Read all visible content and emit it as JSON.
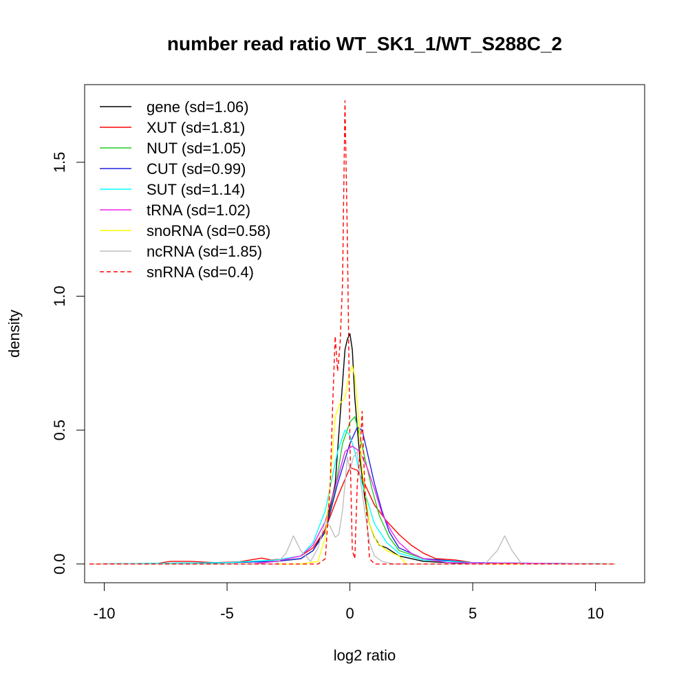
{
  "chart_data": {
    "type": "line",
    "title": "number read ratio WT_SK1_1/WT_S288C_2",
    "xlabel": "log2 ratio",
    "ylabel": "density",
    "xlim": [
      -10.8,
      12.0
    ],
    "ylim": [
      -0.07,
      1.79
    ],
    "xticks": [
      -10,
      -5,
      0,
      5,
      10
    ],
    "xtick_labels": [
      "-10",
      "-5",
      "0",
      "5",
      "10"
    ],
    "yticks": [
      0.0,
      0.5,
      1.0,
      1.5
    ],
    "ytick_labels": [
      "0.0",
      "0.5",
      "1.0",
      "1.5"
    ],
    "grid": false,
    "legend_position": "top-left",
    "series": [
      {
        "name": "gene (sd=1.06)",
        "color": "#000000",
        "dash": "solid",
        "x": [
          -10.6,
          -8,
          -5,
          -3,
          -2,
          -1.5,
          -1,
          -0.6,
          -0.4,
          -0.2,
          -0.1,
          0,
          0.1,
          0.2,
          0.4,
          0.6,
          0.8,
          1,
          1.2,
          1.5,
          2,
          3,
          5,
          10.8
        ],
        "y": [
          0,
          0,
          0.005,
          0.01,
          0.02,
          0.05,
          0.13,
          0.3,
          0.55,
          0.8,
          0.84,
          0.86,
          0.8,
          0.62,
          0.4,
          0.25,
          0.15,
          0.1,
          0.07,
          0.06,
          0.03,
          0.01,
          0,
          0
        ]
      },
      {
        "name": "XUT (sd=1.81)",
        "color": "#ff0000",
        "dash": "solid",
        "x": [
          -10.6,
          -8,
          -7.3,
          -6.5,
          -5.5,
          -4.5,
          -3.6,
          -3.2,
          -2.5,
          -2,
          -1.5,
          -1,
          -0.5,
          0,
          0.3,
          0.6,
          1,
          1.5,
          2,
          2.5,
          3,
          3.5,
          4.3,
          5,
          6,
          10.8
        ],
        "y": [
          0,
          0,
          0.01,
          0.01,
          0.005,
          0.008,
          0.022,
          0.015,
          0.02,
          0.03,
          0.06,
          0.13,
          0.25,
          0.36,
          0.35,
          0.3,
          0.22,
          0.16,
          0.11,
          0.07,
          0.04,
          0.02,
          0.015,
          0.005,
          0.003,
          0
        ]
      },
      {
        "name": "NUT (sd=1.05)",
        "color": "#22cc22",
        "dash": "solid",
        "x": [
          -10.6,
          -5,
          -3,
          -2,
          -1.5,
          -1,
          -0.6,
          -0.3,
          0,
          0.2,
          0.4,
          0.6,
          0.9,
          1.2,
          1.6,
          2,
          3,
          5,
          10.8
        ],
        "y": [
          0,
          0.005,
          0.01,
          0.02,
          0.05,
          0.12,
          0.28,
          0.45,
          0.53,
          0.55,
          0.48,
          0.4,
          0.28,
          0.18,
          0.1,
          0.05,
          0.02,
          0.005,
          0
        ]
      },
      {
        "name": "CUT (sd=0.99)",
        "color": "#2020dd",
        "dash": "solid",
        "x": [
          -10.6,
          -5,
          -3,
          -2,
          -1.5,
          -1,
          -0.5,
          0,
          0.3,
          0.5,
          0.7,
          1,
          1.3,
          1.6,
          2,
          3,
          5,
          10.8
        ],
        "y": [
          0,
          0.005,
          0.01,
          0.02,
          0.05,
          0.12,
          0.3,
          0.45,
          0.51,
          0.5,
          0.42,
          0.3,
          0.2,
          0.12,
          0.06,
          0.02,
          0.005,
          0
        ]
      },
      {
        "name": "SUT (sd=1.14)",
        "color": "#00ffff",
        "dash": "solid",
        "x": [
          -10.6,
          -5,
          -3,
          -2,
          -1.5,
          -1,
          -0.5,
          -0.2,
          0,
          0.2,
          0.5,
          1,
          1.5,
          2,
          3,
          5,
          10.8
        ],
        "y": [
          0,
          0.005,
          0.015,
          0.03,
          0.08,
          0.2,
          0.42,
          0.5,
          0.48,
          0.42,
          0.3,
          0.15,
          0.08,
          0.04,
          0.015,
          0.005,
          0
        ]
      },
      {
        "name": "tRNA (sd=1.02)",
        "color": "#ee22ee",
        "dash": "solid",
        "x": [
          -10.6,
          -4,
          -3,
          -2,
          -1.5,
          -1,
          -0.5,
          -0.2,
          0.1,
          0.4,
          0.7,
          1,
          1.3,
          1.7,
          2,
          2.5,
          3,
          4,
          10.8
        ],
        "y": [
          0,
          0,
          0.01,
          0.03,
          0.07,
          0.16,
          0.32,
          0.42,
          0.44,
          0.42,
          0.36,
          0.28,
          0.19,
          0.12,
          0.08,
          0.04,
          0.02,
          0.005,
          0
        ]
      },
      {
        "name": "snoRNA (sd=0.58)",
        "color": "#ffff00",
        "dash": "solid",
        "x": [
          -10.6,
          -2,
          -1.3,
          -1,
          -0.8,
          -0.6,
          -0.4,
          -0.2,
          -0.05,
          0.1,
          0.2,
          0.35,
          0.5,
          0.8,
          1.1,
          1.5,
          2,
          2.3,
          10.8
        ],
        "y": [
          0,
          0,
          0.01,
          0.1,
          0.3,
          0.55,
          0.6,
          0.62,
          0.7,
          0.74,
          0.7,
          0.55,
          0.35,
          0.15,
          0.08,
          0.05,
          0.03,
          0,
          0
        ]
      },
      {
        "name": "ncRNA (sd=1.85)",
        "color": "#bebebe",
        "dash": "solid",
        "x": [
          -10.6,
          -3,
          -2.6,
          -2.3,
          -2,
          -1.6,
          -1.3,
          -1,
          -0.8,
          -0.6,
          -0.45,
          -0.3,
          -0.1,
          0,
          0.15,
          0.3,
          0.45,
          0.6,
          0.8,
          1,
          1.3,
          1.8,
          5.5,
          6,
          6.3,
          6.6,
          7,
          10.8
        ],
        "y": [
          0,
          0,
          0.04,
          0.105,
          0.05,
          0.01,
          0.06,
          0.16,
          0.14,
          0.1,
          0.11,
          0.2,
          0.4,
          0.35,
          0.4,
          0.42,
          0.3,
          0.2,
          0.08,
          0.03,
          0.01,
          0,
          0,
          0.05,
          0.105,
          0.05,
          0,
          0
        ]
      },
      {
        "name": "snRNA (sd=0.4)",
        "color": "#ff0000",
        "dash": "dashed",
        "x": [
          -10.6,
          -1.3,
          -1,
          -0.8,
          -0.7,
          -0.6,
          -0.5,
          -0.4,
          -0.3,
          -0.2,
          -0.1,
          0,
          0.1,
          0.2,
          0.3,
          0.4,
          0.5,
          0.6,
          0.8,
          1,
          10.8
        ],
        "y": [
          0,
          0,
          0.02,
          0.3,
          0.6,
          0.85,
          0.72,
          0.82,
          1.05,
          1.73,
          1.2,
          0.45,
          0.05,
          0.02,
          0.3,
          0.4,
          0.57,
          0.3,
          0.02,
          0,
          0
        ]
      }
    ]
  }
}
